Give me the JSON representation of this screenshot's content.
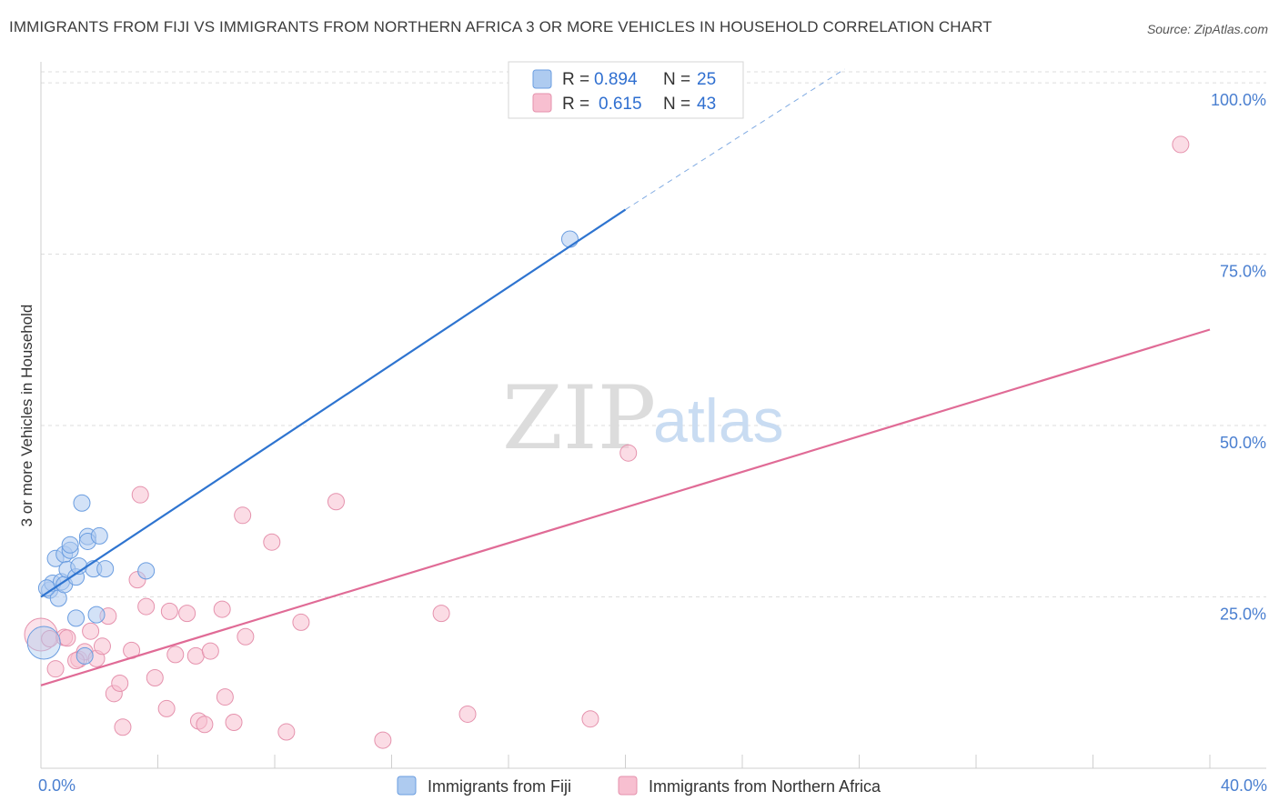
{
  "header": {
    "title": "IMMIGRANTS FROM FIJI VS IMMIGRANTS FROM NORTHERN AFRICA 3 OR MORE VEHICLES IN HOUSEHOLD CORRELATION CHART",
    "source": "Source: ZipAtlas.com"
  },
  "watermark": {
    "zip": "ZIP",
    "atlas": "atlas"
  },
  "colors": {
    "fiji_fill": "#aecbf0",
    "fiji_stroke": "#6a9de0",
    "fiji_line": "#2e74d0",
    "nafrica_fill": "#f7bfd0",
    "nafrica_stroke": "#e592ad",
    "nafrica_line": "#e06b96",
    "grid": "#dddddd",
    "tick_text": "#4a7fd0"
  },
  "legend": {
    "rows": [
      {
        "r_label": "R =",
        "r_value": "0.894",
        "n_label": "N =",
        "n_value": "25"
      },
      {
        "r_label": "R =",
        "r_value": "0.615",
        "n_label": "N =",
        "n_value": "43"
      }
    ]
  },
  "chart_data": {
    "type": "scatter",
    "title": "IMMIGRANTS FROM FIJI VS IMMIGRANTS FROM NORTHERN AFRICA 3 OR MORE VEHICLES IN HOUSEHOLD CORRELATION CHART",
    "xlabel": "",
    "ylabel": "3 or more Vehicles in Household",
    "xlim": [
      0,
      40
    ],
    "ylim": [
      0,
      102
    ],
    "x_tick_labels": [
      {
        "value": 0,
        "label": "0.0%"
      },
      {
        "value": 40,
        "label": "40.0%"
      }
    ],
    "y_ticks": [
      {
        "value": 25,
        "label": "25.0%"
      },
      {
        "value": 50,
        "label": "50.0%"
      },
      {
        "value": 75,
        "label": "75.0%"
      },
      {
        "value": 100,
        "label": "100.0%"
      }
    ],
    "series": [
      {
        "name": "Immigrants from Fiji",
        "r": 0.894,
        "n": 25,
        "trend": {
          "x0": 0,
          "y0": 25.0,
          "x1": 20,
          "y1": 81.5,
          "dash_to_x": 27.5,
          "dash_to_y": 102
        },
        "points": [
          {
            "x": 0.1,
            "y": 18.3,
            "big": true
          },
          {
            "x": 0.3,
            "y": 26.0
          },
          {
            "x": 0.4,
            "y": 27.0
          },
          {
            "x": 0.5,
            "y": 30.6
          },
          {
            "x": 0.6,
            "y": 24.8
          },
          {
            "x": 0.7,
            "y": 27.2
          },
          {
            "x": 0.8,
            "y": 26.8
          },
          {
            "x": 0.8,
            "y": 31.2
          },
          {
            "x": 0.9,
            "y": 29.0
          },
          {
            "x": 1.0,
            "y": 31.8
          },
          {
            "x": 1.0,
            "y": 32.6
          },
          {
            "x": 1.2,
            "y": 21.9
          },
          {
            "x": 1.2,
            "y": 27.9
          },
          {
            "x": 1.3,
            "y": 29.5
          },
          {
            "x": 1.4,
            "y": 38.7
          },
          {
            "x": 1.5,
            "y": 16.4
          },
          {
            "x": 1.6,
            "y": 33.8
          },
          {
            "x": 1.6,
            "y": 33.1
          },
          {
            "x": 1.8,
            "y": 29.1
          },
          {
            "x": 1.9,
            "y": 22.4
          },
          {
            "x": 2.0,
            "y": 33.9
          },
          {
            "x": 2.2,
            "y": 29.1
          },
          {
            "x": 3.6,
            "y": 28.8
          },
          {
            "x": 18.1,
            "y": 77.2
          },
          {
            "x": 0.2,
            "y": 26.3
          }
        ]
      },
      {
        "name": "Immigrants from Northern Africa",
        "r": 0.615,
        "n": 43,
        "trend": {
          "x0": 0,
          "y0": 12.1,
          "x1": 40,
          "y1": 64.0
        },
        "points": [
          {
            "x": 0.0,
            "y": 19.5,
            "big": true
          },
          {
            "x": 0.3,
            "y": 18.9
          },
          {
            "x": 0.5,
            "y": 14.5
          },
          {
            "x": 0.8,
            "y": 19.1
          },
          {
            "x": 0.9,
            "y": 19.0
          },
          {
            "x": 1.3,
            "y": 15.9
          },
          {
            "x": 1.5,
            "y": 17.0
          },
          {
            "x": 1.7,
            "y": 20.0
          },
          {
            "x": 1.9,
            "y": 16.0
          },
          {
            "x": 2.1,
            "y": 17.8
          },
          {
            "x": 2.3,
            "y": 22.2
          },
          {
            "x": 2.5,
            "y": 10.9
          },
          {
            "x": 2.7,
            "y": 12.4
          },
          {
            "x": 2.8,
            "y": 6.0
          },
          {
            "x": 3.1,
            "y": 17.2
          },
          {
            "x": 3.3,
            "y": 27.5
          },
          {
            "x": 3.4,
            "y": 39.9
          },
          {
            "x": 3.6,
            "y": 23.6
          },
          {
            "x": 3.9,
            "y": 13.2
          },
          {
            "x": 4.3,
            "y": 8.7
          },
          {
            "x": 4.4,
            "y": 22.9
          },
          {
            "x": 4.6,
            "y": 16.6
          },
          {
            "x": 5.0,
            "y": 22.6
          },
          {
            "x": 5.3,
            "y": 16.4
          },
          {
            "x": 5.4,
            "y": 6.9
          },
          {
            "x": 5.6,
            "y": 6.4
          },
          {
            "x": 5.8,
            "y": 17.1
          },
          {
            "x": 6.2,
            "y": 23.2
          },
          {
            "x": 6.3,
            "y": 10.4
          },
          {
            "x": 6.6,
            "y": 6.7
          },
          {
            "x": 6.9,
            "y": 36.9
          },
          {
            "x": 7.0,
            "y": 19.2
          },
          {
            "x": 7.9,
            "y": 33.0
          },
          {
            "x": 8.4,
            "y": 5.3
          },
          {
            "x": 8.9,
            "y": 21.3
          },
          {
            "x": 10.1,
            "y": 38.9
          },
          {
            "x": 11.7,
            "y": 4.1
          },
          {
            "x": 13.7,
            "y": 22.6
          },
          {
            "x": 14.6,
            "y": 7.9
          },
          {
            "x": 18.8,
            "y": 7.2
          },
          {
            "x": 20.1,
            "y": 46.0
          },
          {
            "x": 39.0,
            "y": 91.0
          },
          {
            "x": 1.2,
            "y": 15.7
          }
        ]
      }
    ]
  }
}
